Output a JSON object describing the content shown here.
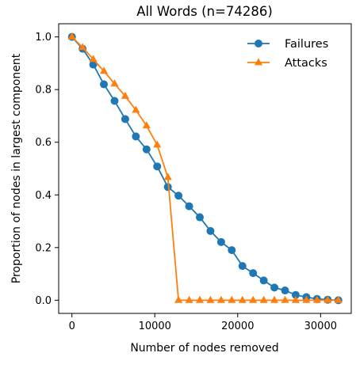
{
  "chart_data": {
    "type": "line",
    "title": "All Words (n=74286)",
    "xlabel": "Number of nodes removed",
    "ylabel": "Proportion of nodes in largest component",
    "xlim": [
      -1600,
      33700
    ],
    "ylim": [
      -0.05,
      1.05
    ],
    "xticks": [
      0,
      10000,
      20000,
      30000
    ],
    "xtick_labels": [
      "0",
      "10000",
      "20000",
      "30000"
    ],
    "yticks": [
      0.0,
      0.2,
      0.4,
      0.6,
      0.8,
      1.0
    ],
    "ytick_labels": [
      "0.0",
      "0.2",
      "0.4",
      "0.6",
      "0.8",
      "1.0"
    ],
    "grid": false,
    "legend_position": "top-right",
    "series": [
      {
        "name": "Failures",
        "color": "#1f77b4",
        "marker": "circle",
        "x": [
          0,
          1286,
          2571,
          3857,
          5143,
          6429,
          7714,
          9000,
          10286,
          11571,
          12857,
          14143,
          15429,
          16714,
          18000,
          19286,
          20571,
          21857,
          23143,
          24429,
          25714,
          27000,
          28286,
          29571,
          30857,
          32143
        ],
        "y": [
          1.0,
          0.955,
          0.895,
          0.82,
          0.757,
          0.688,
          0.622,
          0.573,
          0.508,
          0.43,
          0.397,
          0.357,
          0.315,
          0.263,
          0.221,
          0.19,
          0.13,
          0.103,
          0.075,
          0.048,
          0.037,
          0.02,
          0.012,
          0.005,
          0.002,
          0.0
        ]
      },
      {
        "name": "Attacks",
        "color": "#ff7f0e",
        "marker": "triangle",
        "x": [
          0,
          1286,
          2571,
          3857,
          5143,
          6429,
          7714,
          9000,
          10286,
          11571,
          12857,
          14143,
          15429,
          16714,
          18000,
          19286,
          20571,
          21857,
          23143,
          24429,
          25714,
          27000,
          28286,
          29571,
          30857,
          32143
        ],
        "y": [
          1.0,
          0.96,
          0.915,
          0.87,
          0.822,
          0.775,
          0.722,
          0.663,
          0.59,
          0.467,
          0.0,
          0.0,
          0.0,
          0.0,
          0.0,
          0.0,
          0.0,
          0.0,
          0.0,
          0.0,
          0.0,
          0.0,
          0.0,
          0.0,
          0.0,
          0.0
        ]
      }
    ]
  }
}
